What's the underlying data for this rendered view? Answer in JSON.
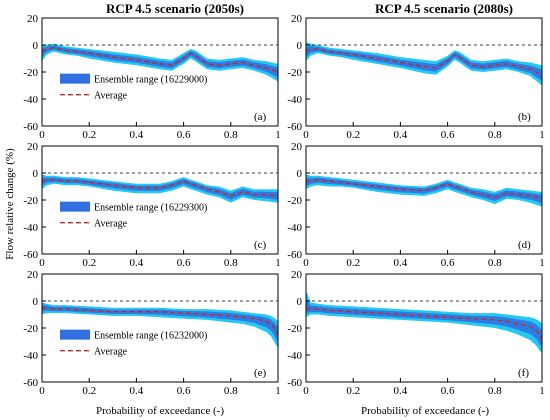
{
  "figure": {
    "ylabel": "Flow relative change (%)",
    "xlabel": "Probability of exceedance (-)",
    "column_titles": [
      "RCP 4.5 scenario (2050s)",
      "RCP 4.5 scenario (2080s)"
    ]
  },
  "colors": {
    "ensemble_dark": "#2f6fe0",
    "ensemble_light": "#25c8f2",
    "average": "#c62828",
    "zero_line": "#000000"
  },
  "chart_data": [
    {
      "type": "area",
      "panel": "(a)",
      "title": "RCP 4.5 scenario (2050s)",
      "legend": {
        "range_label": "Ensemble range (16229000)",
        "average_label": "Average"
      },
      "xlim": [
        0,
        1
      ],
      "ylim": [
        -60,
        20
      ],
      "xticks": [
        "0",
        "0.2",
        "0.4",
        "0.6",
        "0.8",
        "1"
      ],
      "yticks": [
        "20",
        "0",
        "-20",
        "-40",
        "-60"
      ],
      "x": [
        0,
        0.02,
        0.05,
        0.1,
        0.15,
        0.2,
        0.3,
        0.4,
        0.5,
        0.55,
        0.6,
        0.63,
        0.65,
        0.7,
        0.75,
        0.8,
        0.85,
        0.9,
        0.95,
        1
      ],
      "average": [
        -5,
        -3,
        -2,
        -4,
        -5,
        -6,
        -9,
        -11,
        -14,
        -15,
        -10,
        -6,
        -8,
        -14,
        -15,
        -14,
        -13,
        -15,
        -17,
        -20
      ],
      "lower": [
        -12,
        -7,
        -5,
        -7,
        -8,
        -10,
        -13,
        -15,
        -18,
        -19,
        -14,
        -10,
        -12,
        -18,
        -19,
        -18,
        -17,
        -19,
        -22,
        -27
      ],
      "upper": [
        0,
        0,
        1,
        -1,
        -2,
        -3,
        -5,
        -7,
        -10,
        -11,
        -6,
        -3,
        -4,
        -10,
        -11,
        -10,
        -9,
        -11,
        -12,
        -14
      ]
    },
    {
      "type": "area",
      "panel": "(b)",
      "title": "RCP 4.5 scenario (2080s)",
      "legend": null,
      "xlim": [
        0,
        1
      ],
      "ylim": [
        -60,
        20
      ],
      "xticks": [
        "0",
        "0.2",
        "0.4",
        "0.6",
        "0.8",
        "1"
      ],
      "yticks": [
        "20",
        "0",
        "-20",
        "-40",
        "-60"
      ],
      "x": [
        0,
        0.02,
        0.05,
        0.1,
        0.15,
        0.2,
        0.3,
        0.4,
        0.5,
        0.55,
        0.6,
        0.63,
        0.65,
        0.7,
        0.75,
        0.8,
        0.85,
        0.9,
        0.95,
        1
      ],
      "average": [
        -5,
        -3,
        -3,
        -5,
        -6,
        -7,
        -10,
        -13,
        -16,
        -17,
        -12,
        -7,
        -9,
        -15,
        -16,
        -15,
        -14,
        -16,
        -18,
        -22
      ],
      "lower": [
        -12,
        -8,
        -6,
        -8,
        -9,
        -11,
        -14,
        -17,
        -21,
        -22,
        -16,
        -11,
        -13,
        -19,
        -20,
        -19,
        -18,
        -20,
        -23,
        -30
      ],
      "upper": [
        2,
        1,
        0,
        -2,
        -3,
        -4,
        -6,
        -9,
        -11,
        -12,
        -8,
        -4,
        -5,
        -11,
        -12,
        -11,
        -10,
        -12,
        -13,
        -15
      ]
    },
    {
      "type": "area",
      "panel": "(c)",
      "title": "",
      "legend": {
        "range_label": "Ensemble range (16229300)",
        "average_label": "Average"
      },
      "xlim": [
        0,
        1
      ],
      "ylim": [
        -60,
        20
      ],
      "xticks": [
        "0",
        "0.2",
        "0.4",
        "0.6",
        "0.8",
        "1"
      ],
      "yticks": [
        "20",
        "0",
        "-20",
        "-40",
        "-60"
      ],
      "x": [
        0,
        0.02,
        0.05,
        0.1,
        0.15,
        0.2,
        0.3,
        0.4,
        0.5,
        0.55,
        0.6,
        0.63,
        0.65,
        0.7,
        0.75,
        0.8,
        0.85,
        0.9,
        0.95,
        1
      ],
      "average": [
        -6,
        -5,
        -5,
        -6,
        -6,
        -7,
        -9,
        -11,
        -11,
        -9,
        -6,
        -8,
        -9,
        -12,
        -14,
        -17,
        -14,
        -16,
        -16,
        -17
      ],
      "lower": [
        -12,
        -9,
        -8,
        -9,
        -9,
        -10,
        -13,
        -15,
        -15,
        -13,
        -10,
        -12,
        -13,
        -16,
        -18,
        -22,
        -18,
        -20,
        -21,
        -22
      ],
      "upper": [
        -1,
        -2,
        -2,
        -3,
        -3,
        -4,
        -6,
        -8,
        -8,
        -6,
        -3,
        -5,
        -6,
        -9,
        -10,
        -13,
        -10,
        -12,
        -12,
        -12
      ]
    },
    {
      "type": "area",
      "panel": "(d)",
      "title": "",
      "legend": null,
      "xlim": [
        0,
        1
      ],
      "ylim": [
        -60,
        20
      ],
      "xticks": [
        "0",
        "0.2",
        "0.4",
        "0.6",
        "0.8",
        "1"
      ],
      "yticks": [
        "20",
        "0",
        "-20",
        "-40",
        "-60"
      ],
      "x": [
        0,
        0.02,
        0.05,
        0.1,
        0.15,
        0.2,
        0.3,
        0.4,
        0.5,
        0.55,
        0.6,
        0.63,
        0.65,
        0.7,
        0.75,
        0.8,
        0.85,
        0.9,
        0.95,
        1
      ],
      "average": [
        -6,
        -6,
        -5,
        -6,
        -7,
        -8,
        -10,
        -12,
        -13,
        -11,
        -8,
        -10,
        -11,
        -14,
        -16,
        -18,
        -15,
        -16,
        -17,
        -19
      ],
      "lower": [
        -12,
        -10,
        -9,
        -10,
        -10,
        -11,
        -14,
        -16,
        -17,
        -15,
        -12,
        -14,
        -15,
        -18,
        -20,
        -23,
        -19,
        -20,
        -22,
        -25
      ],
      "upper": [
        -1,
        -2,
        -2,
        -3,
        -4,
        -5,
        -7,
        -9,
        -10,
        -8,
        -5,
        -7,
        -8,
        -11,
        -12,
        -14,
        -11,
        -12,
        -13,
        -14
      ]
    },
    {
      "type": "area",
      "panel": "(e)",
      "title": "",
      "legend": {
        "range_label": "Ensemble range (16232000)",
        "average_label": "Average"
      },
      "xlim": [
        0,
        1
      ],
      "ylim": [
        -60,
        20
      ],
      "xticks": [
        "0",
        "0.2",
        "0.4",
        "0.6",
        "0.8",
        "1"
      ],
      "yticks": [
        "20",
        "0",
        "-20",
        "-40",
        "-60"
      ],
      "x": [
        0,
        0.02,
        0.05,
        0.1,
        0.2,
        0.3,
        0.4,
        0.5,
        0.6,
        0.7,
        0.8,
        0.85,
        0.9,
        0.95,
        0.97,
        0.98,
        0.99,
        1
      ],
      "average": [
        -5,
        -5,
        -6,
        -6,
        -7,
        -8,
        -8,
        -8,
        -9,
        -10,
        -11,
        -12,
        -13,
        -15,
        -17,
        -19,
        -22,
        -25
      ],
      "lower": [
        -10,
        -9,
        -9,
        -9,
        -10,
        -11,
        -11,
        -12,
        -13,
        -14,
        -16,
        -17,
        -19,
        -23,
        -26,
        -29,
        -32,
        -35
      ],
      "upper": [
        -1,
        -2,
        -3,
        -3,
        -4,
        -5,
        -5,
        -5,
        -6,
        -6,
        -7,
        -8,
        -9,
        -10,
        -11,
        -12,
        -13,
        -15
      ]
    },
    {
      "type": "area",
      "panel": "(f)",
      "title": "",
      "legend": null,
      "xlim": [
        0,
        1
      ],
      "ylim": [
        -60,
        20
      ],
      "xticks": [
        "0",
        "0.2",
        "0.4",
        "0.6",
        "0.8",
        "1"
      ],
      "yticks": [
        "20",
        "0",
        "-20",
        "-40",
        "-60"
      ],
      "x": [
        0,
        0.02,
        0.05,
        0.1,
        0.2,
        0.3,
        0.4,
        0.5,
        0.6,
        0.7,
        0.8,
        0.85,
        0.9,
        0.95,
        0.97,
        0.98,
        0.99,
        1
      ],
      "average": [
        -5,
        -6,
        -6,
        -7,
        -8,
        -9,
        -10,
        -11,
        -12,
        -13,
        -14,
        -15,
        -17,
        -19,
        -21,
        -23,
        -26,
        -28
      ],
      "lower": [
        -12,
        -10,
        -10,
        -11,
        -12,
        -13,
        -14,
        -15,
        -16,
        -18,
        -20,
        -22,
        -25,
        -29,
        -32,
        -34,
        -37,
        -38
      ],
      "upper": [
        8,
        -1,
        -2,
        -3,
        -4,
        -5,
        -6,
        -7,
        -8,
        -9,
        -9,
        -10,
        -11,
        -12,
        -13,
        -14,
        -15,
        -17
      ]
    }
  ]
}
